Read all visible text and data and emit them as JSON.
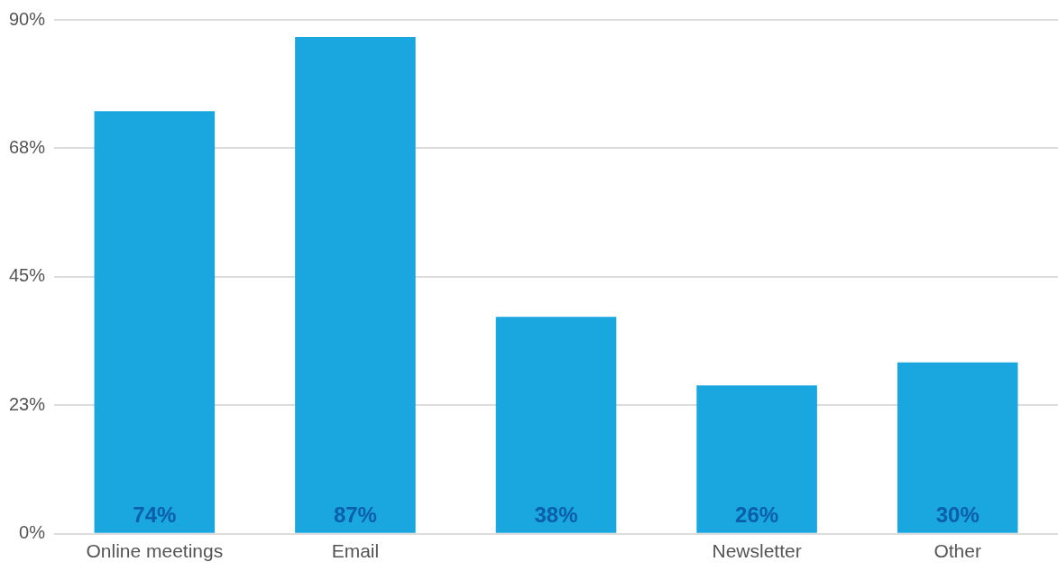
{
  "chart_data": {
    "type": "bar",
    "categories": [
      "Online meetings",
      "Email",
      null,
      "Newsletter",
      "Other"
    ],
    "values": [
      74,
      87,
      38,
      26,
      30
    ],
    "color": "#1aa6df",
    "value_labels": [
      "74%",
      "87%",
      "38%",
      "26%",
      "30%"
    ],
    "ylim": [
      0,
      90
    ],
    "yticks": [
      {
        "value": 0,
        "label": "0%"
      },
      {
        "value": 22.5,
        "label": "23%"
      },
      {
        "value": 45,
        "label": "45%"
      },
      {
        "value": 67.5,
        "label": "68%"
      },
      {
        "value": 90,
        "label": "90%"
      }
    ],
    "grid": "y"
  }
}
